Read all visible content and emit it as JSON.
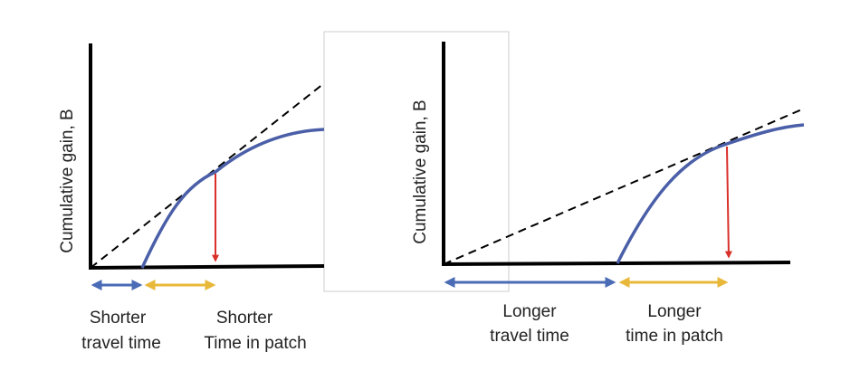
{
  "panels": [
    {
      "y_label": "Cumulative gain, B",
      "travel_label": [
        "Shorter",
        "travel time"
      ],
      "patch_label": [
        "Shorter",
        "Time in patch"
      ]
    },
    {
      "y_label": "Cumulative gain, B",
      "travel_label": [
        "Longer",
        "travel time"
      ],
      "patch_label": [
        "Longer",
        "time in patch"
      ]
    }
  ]
}
